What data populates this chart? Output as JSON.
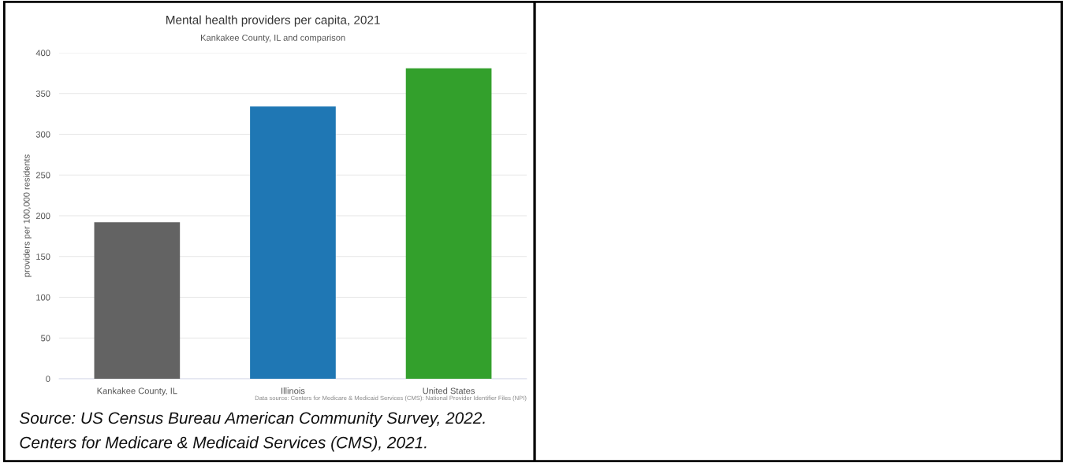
{
  "chart_data": {
    "type": "bar",
    "title": "Mental health providers per capita, 2021",
    "subtitle": "Kankakee County, IL and comparison",
    "ylabel": "providers per 100,000 residents",
    "categories": [
      "Kankakee County, IL",
      "Illinois",
      "United States"
    ],
    "values": [
      192,
      334,
      381
    ],
    "colors": [
      "#636363",
      "#1f77b4",
      "#33a02c"
    ],
    "ylim": [
      0,
      400
    ],
    "yticks": [
      0,
      50,
      100,
      150,
      200,
      250,
      300,
      350,
      400
    ],
    "grid": "y",
    "annotations": [
      "Data source: Centers for Medicare & Medicaid Services (CMS): National Provider Identifier Files (NPI)",
      "Source: US Census Bureau American Community Survey, 2022.",
      "Centers for Medicare & Medicaid Services (CMS), 2021."
    ]
  }
}
